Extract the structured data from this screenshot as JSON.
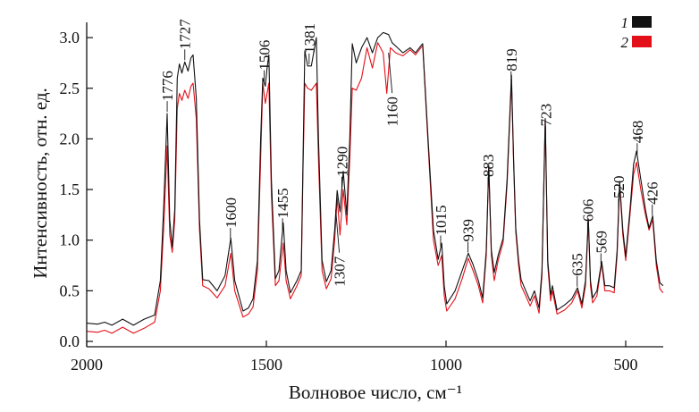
{
  "chart_data": {
    "type": "line",
    "title": "",
    "xlabel": "Волновое число, см⁻¹",
    "ylabel": "Интенсивность, отн. ед.",
    "xlim": [
      2000,
      398
    ],
    "ylim": [
      0.0,
      3.2
    ],
    "x_reversed": true,
    "grid": false,
    "xticks": [
      2000,
      1500,
      1000,
      500
    ],
    "xtick_labels": [
      "2000",
      "1500",
      "1000",
      "500"
    ],
    "yticks": [
      0.0,
      0.5,
      1.0,
      1.5,
      2.0,
      2.5,
      3.0
    ],
    "ytick_labels": [
      "0.0",
      "0.5",
      "1.0",
      "1.5",
      "2.0",
      "2.5",
      "3.0"
    ],
    "legend": {
      "placement": "top-right",
      "entries": [
        {
          "label": "1",
          "color": "#111111"
        },
        {
          "label": "2",
          "color": "#e3101a"
        }
      ]
    },
    "series": [
      {
        "name": "1",
        "color": "#111111",
        "points": [
          [
            2000,
            0.18
          ],
          [
            1970,
            0.17
          ],
          [
            1950,
            0.19
          ],
          [
            1930,
            0.16
          ],
          [
            1900,
            0.22
          ],
          [
            1870,
            0.16
          ],
          [
            1840,
            0.22
          ],
          [
            1811,
            0.26
          ],
          [
            1795,
            0.6
          ],
          [
            1786,
            1.3
          ],
          [
            1776,
            2.25
          ],
          [
            1769,
            1.2
          ],
          [
            1762,
            0.93
          ],
          [
            1755,
            1.3
          ],
          [
            1748,
            2.6
          ],
          [
            1742,
            2.74
          ],
          [
            1735,
            2.65
          ],
          [
            1727,
            2.76
          ],
          [
            1718,
            2.67
          ],
          [
            1710,
            2.8
          ],
          [
            1704,
            2.83
          ],
          [
            1695,
            2.4
          ],
          [
            1686,
            1.2
          ],
          [
            1677,
            0.61
          ],
          [
            1660,
            0.6
          ],
          [
            1637,
            0.5
          ],
          [
            1615,
            0.65
          ],
          [
            1599,
            1.02
          ],
          [
            1588,
            0.6
          ],
          [
            1565,
            0.3
          ],
          [
            1550,
            0.33
          ],
          [
            1537,
            0.42
          ],
          [
            1525,
            0.8
          ],
          [
            1516,
            2.0
          ],
          [
            1510,
            2.6
          ],
          [
            1503,
            2.52
          ],
          [
            1498,
            2.7
          ],
          [
            1493,
            2.83
          ],
          [
            1486,
            1.6
          ],
          [
            1475,
            0.62
          ],
          [
            1465,
            0.7
          ],
          [
            1453,
            1.17
          ],
          [
            1445,
            0.7
          ],
          [
            1433,
            0.48
          ],
          [
            1415,
            0.6
          ],
          [
            1403,
            0.7
          ],
          [
            1398,
            1.8
          ],
          [
            1393,
            2.87
          ],
          [
            1385,
            2.72
          ],
          [
            1375,
            2.72
          ],
          [
            1361,
            3.0
          ],
          [
            1355,
            2.0
          ],
          [
            1345,
            0.8
          ],
          [
            1333,
            0.59
          ],
          [
            1320,
            0.7
          ],
          [
            1310,
            1.1
          ],
          [
            1303,
            1.49
          ],
          [
            1295,
            1.28
          ],
          [
            1286,
            1.68
          ],
          [
            1276,
            1.25
          ],
          [
            1268,
            2.0
          ],
          [
            1261,
            2.94
          ],
          [
            1250,
            2.75
          ],
          [
            1235,
            2.9
          ],
          [
            1220,
            3.0
          ],
          [
            1205,
            2.85
          ],
          [
            1190,
            3.0
          ],
          [
            1175,
            3.05
          ],
          [
            1160,
            3.03
          ],
          [
            1150,
            2.95
          ],
          [
            1135,
            2.9
          ],
          [
            1120,
            2.85
          ],
          [
            1100,
            2.9
          ],
          [
            1085,
            2.85
          ],
          [
            1070,
            2.92
          ],
          [
            1065,
            2.94
          ],
          [
            1050,
            2.0
          ],
          [
            1035,
            1.1
          ],
          [
            1022,
            0.81
          ],
          [
            1012,
            0.97
          ],
          [
            1005,
            0.55
          ],
          [
            998,
            0.37
          ],
          [
            975,
            0.5
          ],
          [
            955,
            0.7
          ],
          [
            938,
            0.87
          ],
          [
            925,
            0.76
          ],
          [
            910,
            0.6
          ],
          [
            898,
            0.43
          ],
          [
            888,
            0.9
          ],
          [
            881,
            1.74
          ],
          [
            874,
            0.9
          ],
          [
            866,
            0.68
          ],
          [
            855,
            0.85
          ],
          [
            841,
            1.02
          ],
          [
            830,
            1.6
          ],
          [
            818,
            2.63
          ],
          [
            812,
            1.8
          ],
          [
            806,
            1.12
          ],
          [
            798,
            0.8
          ],
          [
            791,
            0.61
          ],
          [
            778,
            0.5
          ],
          [
            766,
            0.4
          ],
          [
            754,
            0.5
          ],
          [
            741,
            0.33
          ],
          [
            733,
            0.7
          ],
          [
            724,
            2.2
          ],
          [
            717,
            0.8
          ],
          [
            709,
            0.46
          ],
          [
            704,
            0.55
          ],
          [
            691,
            0.31
          ],
          [
            670,
            0.36
          ],
          [
            650,
            0.42
          ],
          [
            634,
            0.53
          ],
          [
            622,
            0.37
          ],
          [
            612,
            0.6
          ],
          [
            604,
            1.21
          ],
          [
            598,
            0.6
          ],
          [
            592,
            0.43
          ],
          [
            580,
            0.5
          ],
          [
            567,
            0.79
          ],
          [
            558,
            0.55
          ],
          [
            545,
            0.55
          ],
          [
            532,
            0.53
          ],
          [
            524,
            0.9
          ],
          [
            517,
            1.58
          ],
          [
            508,
            1.1
          ],
          [
            500,
            0.84
          ],
          [
            488,
            1.3
          ],
          [
            478,
            1.75
          ],
          [
            470,
            1.88
          ],
          [
            458,
            1.6
          ],
          [
            445,
            1.3
          ],
          [
            435,
            1.12
          ],
          [
            425,
            1.24
          ],
          [
            415,
            0.8
          ],
          [
            405,
            0.58
          ],
          [
            396,
            0.55
          ]
        ]
      },
      {
        "name": "2",
        "color": "#e3101a",
        "points": [
          [
            2000,
            0.1
          ],
          [
            1970,
            0.09
          ],
          [
            1950,
            0.11
          ],
          [
            1930,
            0.08
          ],
          [
            1900,
            0.14
          ],
          [
            1870,
            0.08
          ],
          [
            1840,
            0.13
          ],
          [
            1811,
            0.19
          ],
          [
            1795,
            0.5
          ],
          [
            1786,
            1.1
          ],
          [
            1776,
            1.93
          ],
          [
            1769,
            1.05
          ],
          [
            1762,
            0.88
          ],
          [
            1755,
            1.2
          ],
          [
            1748,
            2.3
          ],
          [
            1742,
            2.45
          ],
          [
            1735,
            2.38
          ],
          [
            1727,
            2.48
          ],
          [
            1718,
            2.4
          ],
          [
            1710,
            2.52
          ],
          [
            1704,
            2.55
          ],
          [
            1695,
            2.2
          ],
          [
            1686,
            1.1
          ],
          [
            1677,
            0.55
          ],
          [
            1660,
            0.52
          ],
          [
            1637,
            0.43
          ],
          [
            1615,
            0.55
          ],
          [
            1599,
            0.87
          ],
          [
            1588,
            0.5
          ],
          [
            1565,
            0.24
          ],
          [
            1550,
            0.27
          ],
          [
            1537,
            0.34
          ],
          [
            1525,
            0.7
          ],
          [
            1516,
            1.8
          ],
          [
            1510,
            2.55
          ],
          [
            1503,
            2.35
          ],
          [
            1498,
            2.45
          ],
          [
            1493,
            2.55
          ],
          [
            1486,
            1.45
          ],
          [
            1475,
            0.55
          ],
          [
            1465,
            0.6
          ],
          [
            1453,
            0.97
          ],
          [
            1445,
            0.6
          ],
          [
            1433,
            0.42
          ],
          [
            1415,
            0.55
          ],
          [
            1403,
            0.65
          ],
          [
            1398,
            1.7
          ],
          [
            1393,
            2.55
          ],
          [
            1385,
            2.5
          ],
          [
            1375,
            2.48
          ],
          [
            1361,
            2.55
          ],
          [
            1355,
            1.8
          ],
          [
            1345,
            0.7
          ],
          [
            1333,
            0.52
          ],
          [
            1320,
            0.62
          ],
          [
            1310,
            1.0
          ],
          [
            1303,
            1.42
          ],
          [
            1295,
            1.05
          ],
          [
            1286,
            1.5
          ],
          [
            1276,
            1.15
          ],
          [
            1268,
            1.8
          ],
          [
            1261,
            2.5
          ],
          [
            1250,
            2.48
          ],
          [
            1235,
            2.6
          ],
          [
            1220,
            2.9
          ],
          [
            1205,
            2.7
          ],
          [
            1190,
            2.95
          ],
          [
            1175,
            2.85
          ],
          [
            1165,
            2.45
          ],
          [
            1155,
            2.9
          ],
          [
            1140,
            2.85
          ],
          [
            1120,
            2.82
          ],
          [
            1100,
            2.88
          ],
          [
            1085,
            2.83
          ],
          [
            1070,
            2.9
          ],
          [
            1065,
            2.92
          ],
          [
            1050,
            1.95
          ],
          [
            1035,
            1.0
          ],
          [
            1022,
            0.75
          ],
          [
            1012,
            0.85
          ],
          [
            1005,
            0.45
          ],
          [
            998,
            0.3
          ],
          [
            975,
            0.42
          ],
          [
            955,
            0.62
          ],
          [
            938,
            0.82
          ],
          [
            925,
            0.7
          ],
          [
            910,
            0.55
          ],
          [
            898,
            0.38
          ],
          [
            888,
            0.85
          ],
          [
            881,
            1.72
          ],
          [
            874,
            0.85
          ],
          [
            866,
            0.6
          ],
          [
            855,
            0.8
          ],
          [
            841,
            0.98
          ],
          [
            830,
            1.55
          ],
          [
            818,
            2.58
          ],
          [
            812,
            1.75
          ],
          [
            806,
            1.08
          ],
          [
            798,
            0.75
          ],
          [
            791,
            0.55
          ],
          [
            778,
            0.45
          ],
          [
            766,
            0.35
          ],
          [
            754,
            0.45
          ],
          [
            741,
            0.28
          ],
          [
            733,
            0.65
          ],
          [
            724,
            2.2
          ],
          [
            717,
            0.75
          ],
          [
            709,
            0.4
          ],
          [
            704,
            0.5
          ],
          [
            691,
            0.27
          ],
          [
            670,
            0.31
          ],
          [
            650,
            0.38
          ],
          [
            634,
            0.5
          ],
          [
            622,
            0.33
          ],
          [
            612,
            0.55
          ],
          [
            604,
            1.2
          ],
          [
            598,
            0.55
          ],
          [
            592,
            0.38
          ],
          [
            580,
            0.45
          ],
          [
            567,
            0.77
          ],
          [
            558,
            0.5
          ],
          [
            545,
            0.5
          ],
          [
            532,
            0.48
          ],
          [
            524,
            0.85
          ],
          [
            517,
            1.55
          ],
          [
            508,
            1.05
          ],
          [
            500,
            0.8
          ],
          [
            488,
            1.25
          ],
          [
            478,
            1.65
          ],
          [
            470,
            1.77
          ],
          [
            458,
            1.5
          ],
          [
            445,
            1.25
          ],
          [
            435,
            1.1
          ],
          [
            425,
            1.2
          ],
          [
            415,
            0.75
          ],
          [
            405,
            0.52
          ],
          [
            396,
            0.48
          ]
        ]
      }
    ],
    "annotations": [
      {
        "text": "1776",
        "x": 1776,
        "position": "above"
      },
      {
        "text": "1727",
        "x": 1727,
        "position": "above"
      },
      {
        "text": "1600",
        "x": 1600,
        "position": "above"
      },
      {
        "text": "1506",
        "x": 1506,
        "position": "above"
      },
      {
        "text": "1455",
        "x": 1455,
        "position": "above"
      },
      {
        "text": "1381",
        "x": 1381,
        "position": "above"
      },
      {
        "text": "1290",
        "x": 1290,
        "position": "above"
      },
      {
        "text": "1307",
        "x": 1307,
        "position": "below"
      },
      {
        "text": "1160",
        "x": 1160,
        "position": "below"
      },
      {
        "text": "1015",
        "x": 1015,
        "position": "above"
      },
      {
        "text": "939",
        "x": 939,
        "position": "above"
      },
      {
        "text": "883",
        "x": 883,
        "position": "above"
      },
      {
        "text": "819",
        "x": 819,
        "position": "above"
      },
      {
        "text": "723",
        "x": 723,
        "position": "above"
      },
      {
        "text": "635",
        "x": 635,
        "position": "above"
      },
      {
        "text": "606",
        "x": 606,
        "position": "above"
      },
      {
        "text": "569",
        "x": 569,
        "position": "above"
      },
      {
        "text": "520",
        "x": 520,
        "position": "above"
      },
      {
        "text": "468",
        "x": 468,
        "position": "above"
      },
      {
        "text": "426",
        "x": 426,
        "position": "above"
      }
    ]
  }
}
